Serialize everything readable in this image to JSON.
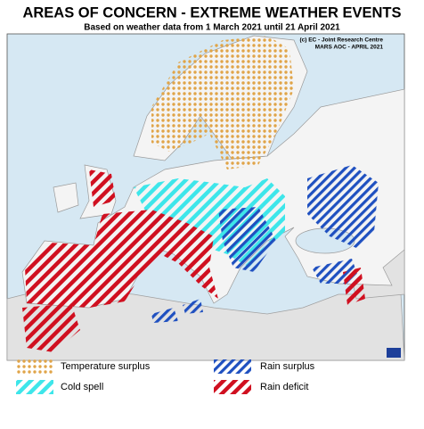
{
  "header": {
    "title": "AREAS OF CONCERN - EXTREME WEATHER EVENTS",
    "subtitle": "Based on weather data from 1 March 2021 until 21 April 2021"
  },
  "credits": [
    "(c) EC - Joint Research Centre",
    "MARS AOC - APRIL 2021"
  ],
  "legend": [
    {
      "label": "Temperature surplus"
    },
    {
      "label": "Rain surplus"
    },
    {
      "label": "Cold spell"
    },
    {
      "label": "Rain deficit"
    }
  ]
}
